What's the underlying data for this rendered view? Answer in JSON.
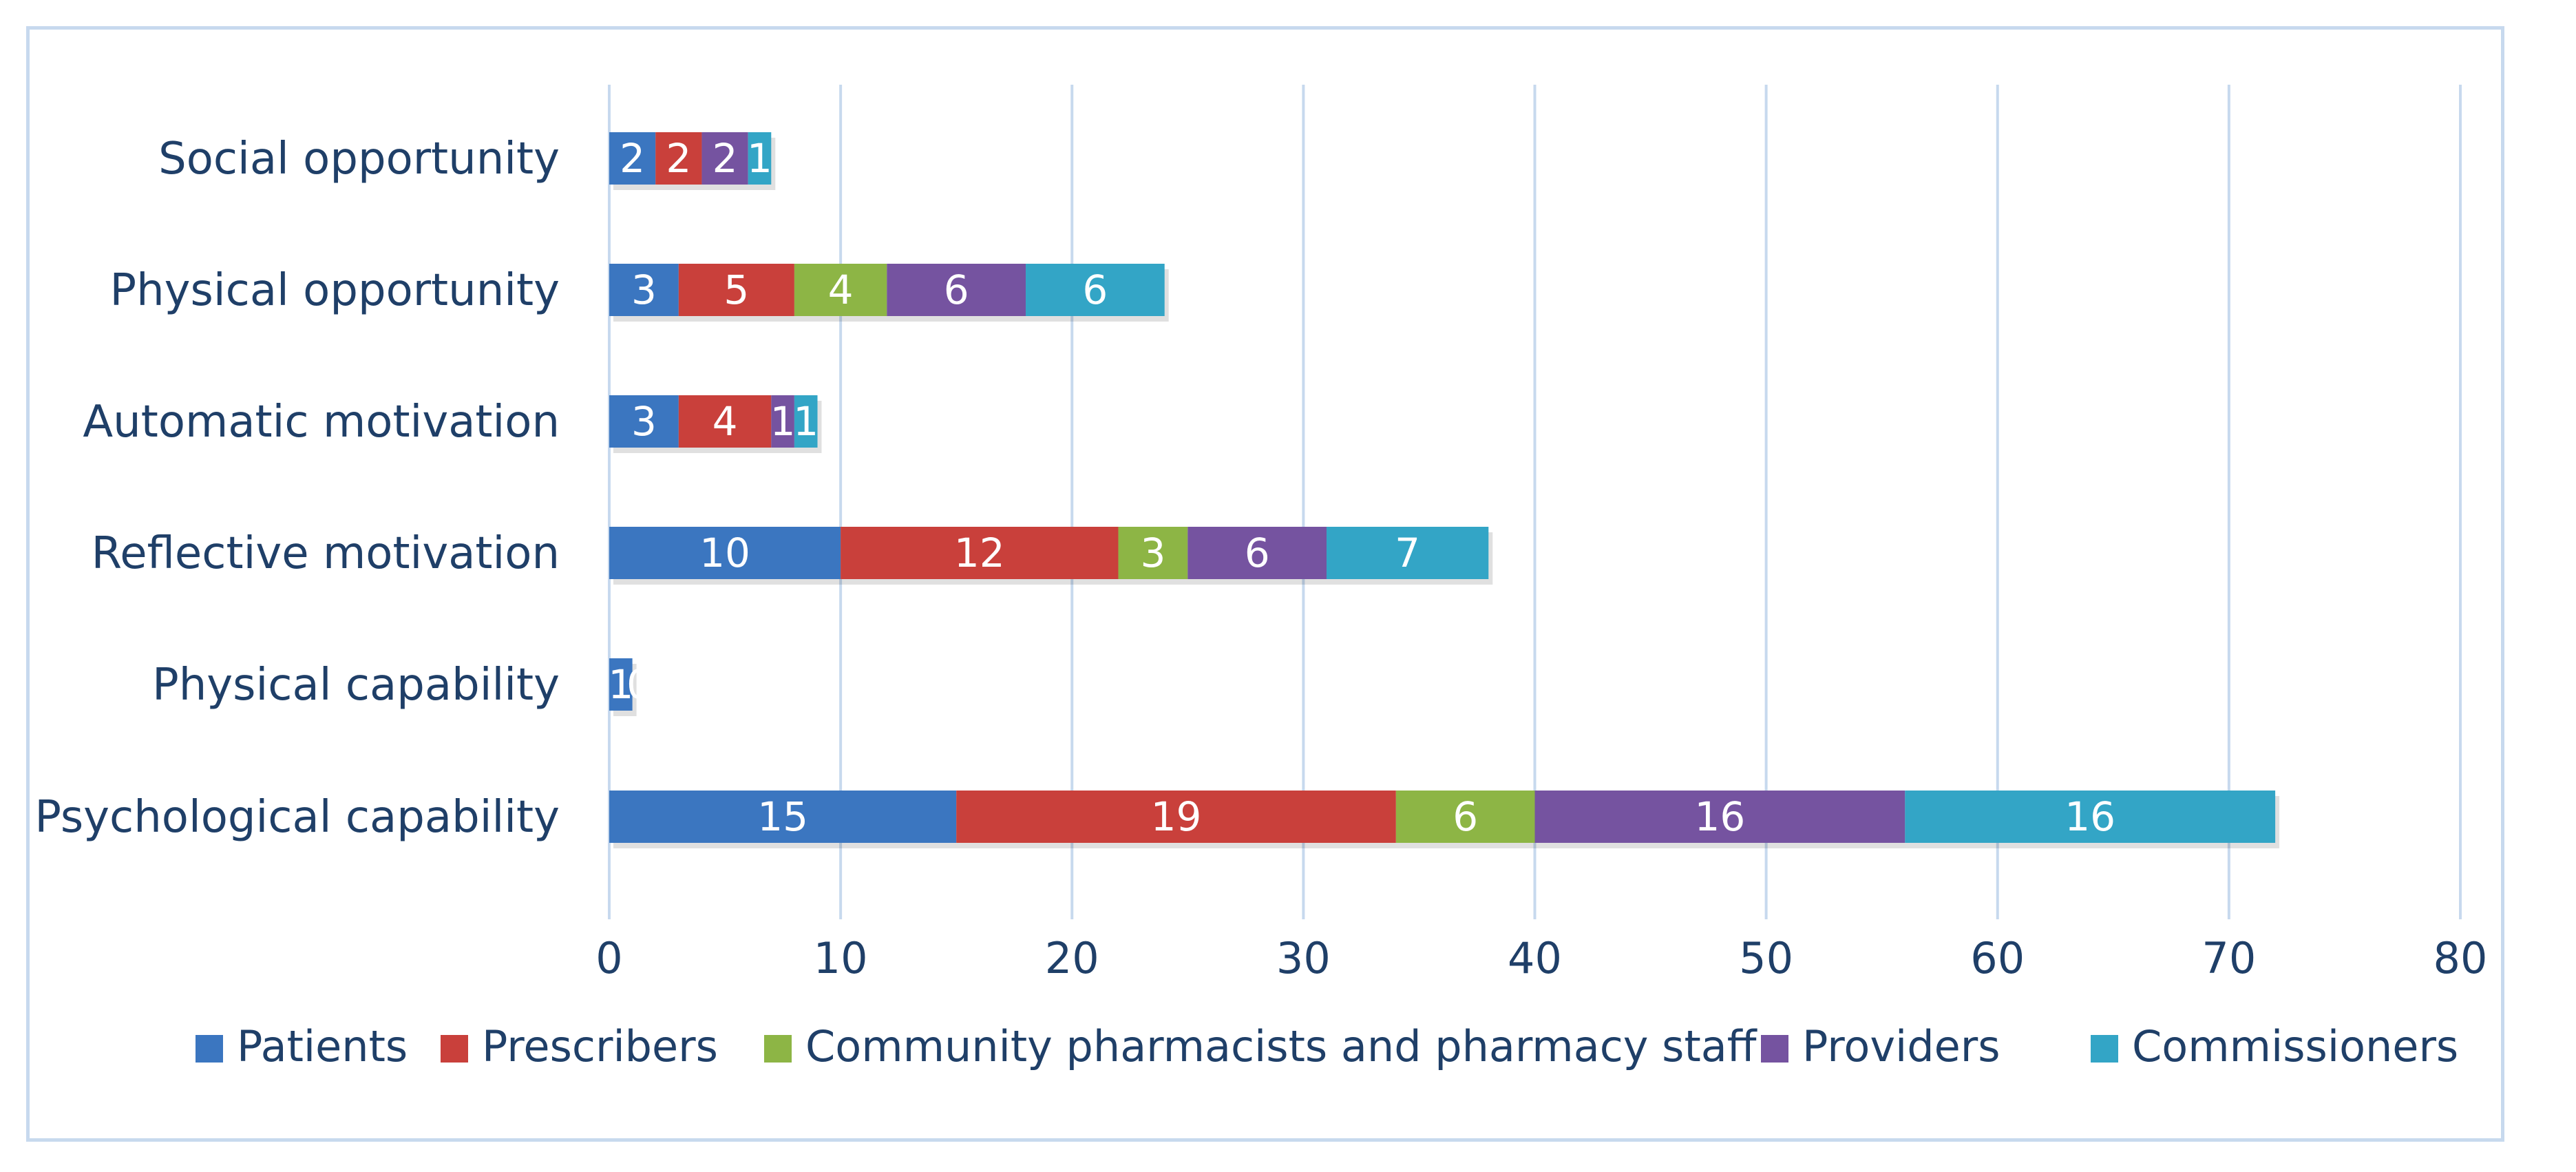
{
  "chart_data": {
    "type": "bar",
    "orientation": "horizontal",
    "stacked": true,
    "title": "",
    "xlabel": "",
    "ylabel": "",
    "xlim": [
      0,
      80
    ],
    "x_ticks": [
      "0",
      "10",
      "20",
      "30",
      "40",
      "50",
      "60",
      "70",
      "80"
    ],
    "grid": "vertical",
    "legend_position": "bottom",
    "categories": [
      "Social opportunity",
      "Physical opportunity",
      "Automatic motivation",
      "Reflective motivation",
      "Physical capability",
      "Psychological capability"
    ],
    "series": [
      {
        "name": "Patients",
        "color": "#3b76c0",
        "values": [
          2,
          3,
          3,
          10,
          1,
          15
        ]
      },
      {
        "name": "Prescribers",
        "color": "#c9403b",
        "values": [
          2,
          5,
          4,
          12,
          0,
          19
        ]
      },
      {
        "name": "Community pharmacists and pharmacy staff",
        "color": "#8db545",
        "values": [
          0,
          4,
          0,
          3,
          0,
          6
        ]
      },
      {
        "name": "Providers",
        "color": "#7553a0",
        "values": [
          2,
          6,
          1,
          6,
          0,
          16
        ]
      },
      {
        "name": "Commissioners",
        "color": "#33a5c6",
        "values": [
          1,
          6,
          1,
          7,
          0,
          16
        ]
      }
    ]
  }
}
